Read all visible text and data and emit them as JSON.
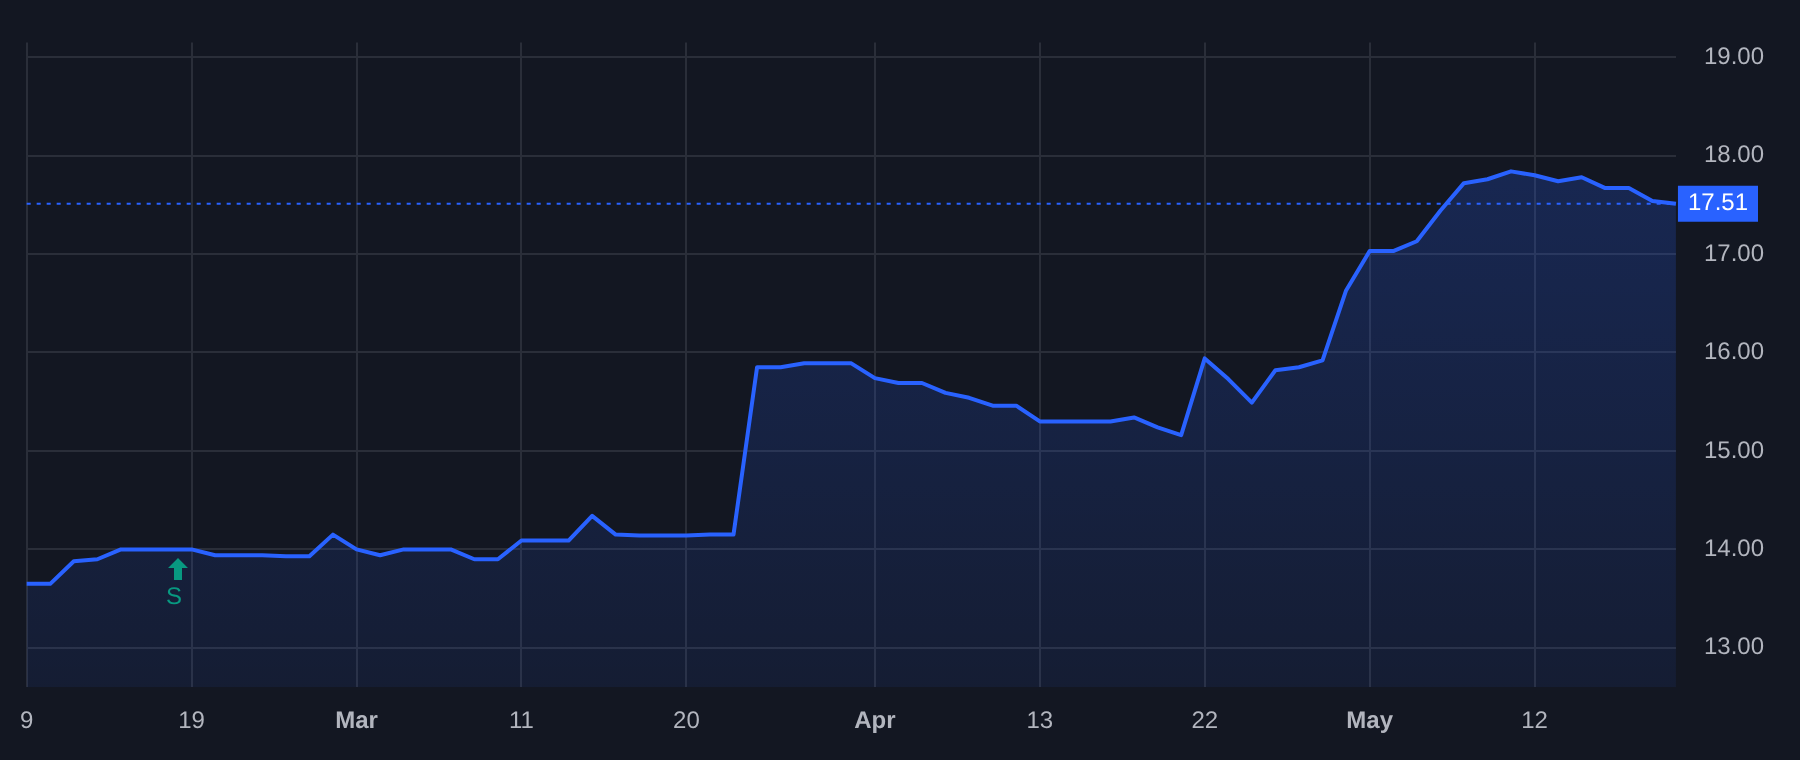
{
  "chart_data": {
    "type": "area",
    "categories": [
      "9",
      null,
      null,
      null,
      null,
      null,
      null,
      "19",
      null,
      null,
      null,
      null,
      null,
      null,
      "Mar",
      null,
      null,
      null,
      null,
      null,
      null,
      "11",
      null,
      null,
      null,
      null,
      null,
      null,
      "20",
      null,
      null,
      null,
      null,
      null,
      null,
      null,
      "Apr",
      null,
      null,
      null,
      null,
      null,
      null,
      "13",
      null,
      null,
      null,
      null,
      null,
      null,
      "22",
      null,
      null,
      null,
      null,
      null,
      null,
      "May",
      null,
      null,
      null,
      null,
      null,
      null,
      "12",
      null,
      null,
      null,
      null,
      null,
      null
    ],
    "series": [
      {
        "color": "#2962ff",
        "values": [
          13.65,
          13.65,
          13.88,
          13.9,
          14.0,
          14.0,
          14.0,
          14.0,
          13.94,
          13.94,
          13.94,
          13.93,
          13.93,
          14.15,
          14.0,
          13.94,
          14.0,
          14.0,
          14.0,
          13.9,
          13.9,
          14.09,
          14.09,
          14.09,
          14.34,
          14.15,
          14.14,
          14.14,
          14.14,
          14.15,
          14.15,
          15.85,
          15.85,
          15.89,
          15.89,
          15.89,
          15.74,
          15.69,
          15.69,
          15.59,
          15.54,
          15.46,
          15.46,
          15.3,
          15.3,
          15.3,
          15.3,
          15.34,
          15.24,
          15.16,
          15.94,
          15.73,
          15.49,
          15.82,
          15.85,
          15.92,
          16.63,
          17.03,
          17.03,
          17.13,
          17.44,
          17.72,
          17.76,
          17.84,
          17.8,
          17.74,
          17.78,
          17.67,
          17.67,
          17.54,
          17.51
        ]
      }
    ],
    "ylim": [
      12.6,
      19.15
    ],
    "yticks": [
      {
        "value": 13,
        "label": "13.00"
      },
      {
        "value": 14,
        "label": "14.00"
      },
      {
        "value": 15,
        "label": "15.00"
      },
      {
        "value": 16,
        "label": "16.00"
      },
      {
        "value": 17,
        "label": "17.00"
      },
      {
        "value": 18,
        "label": "18.00"
      },
      {
        "value": 19,
        "label": "19.00"
      }
    ],
    "grid": true,
    "legend": false,
    "marker": "none",
    "ref_lines": [
      {
        "axis": "y",
        "value": 17.51,
        "label": "17.51",
        "color": "#2962ff",
        "line_style": "dotted"
      }
    ],
    "annotations": [
      "S"
    ]
  }
}
